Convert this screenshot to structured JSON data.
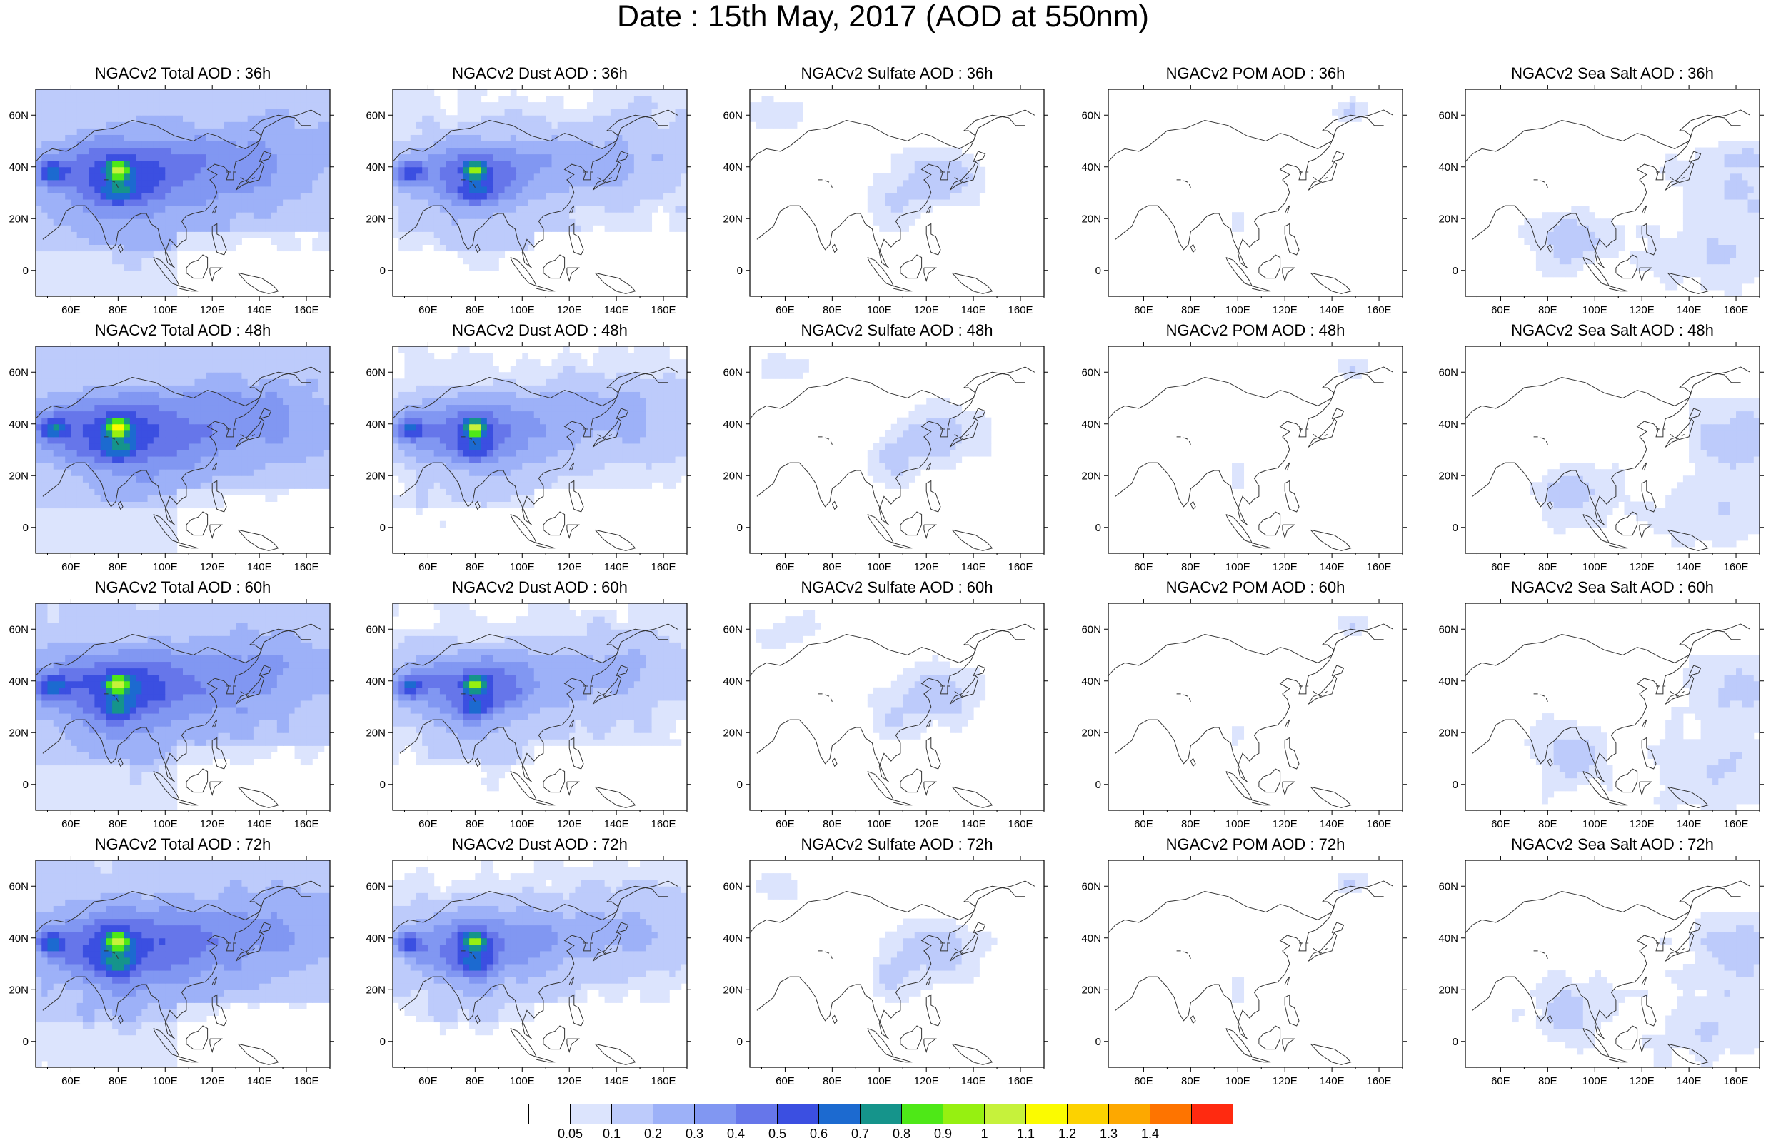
{
  "title": "Date : 15th May, 2017 (AOD at 550nm)",
  "panels": [
    {
      "title": "NGACv2 Total AOD : 36h",
      "species": "total",
      "hour": 36
    },
    {
      "title": "NGACv2 Dust AOD : 36h",
      "species": "dust",
      "hour": 36
    },
    {
      "title": "NGACv2 Sulfate AOD : 36h",
      "species": "sulfate",
      "hour": 36
    },
    {
      "title": "NGACv2 POM AOD : 36h",
      "species": "pom",
      "hour": 36
    },
    {
      "title": "NGACv2 Sea Salt AOD : 36h",
      "species": "seasalt",
      "hour": 36
    },
    {
      "title": "NGACv2 Total AOD : 48h",
      "species": "total",
      "hour": 48
    },
    {
      "title": "NGACv2 Dust AOD : 48h",
      "species": "dust",
      "hour": 48
    },
    {
      "title": "NGACv2 Sulfate AOD : 48h",
      "species": "sulfate",
      "hour": 48
    },
    {
      "title": "NGACv2 POM AOD : 48h",
      "species": "pom",
      "hour": 48
    },
    {
      "title": "NGACv2 Sea Salt AOD : 48h",
      "species": "seasalt",
      "hour": 48
    },
    {
      "title": "NGACv2 Total AOD : 60h",
      "species": "total",
      "hour": 60
    },
    {
      "title": "NGACv2 Dust AOD : 60h",
      "species": "dust",
      "hour": 60
    },
    {
      "title": "NGACv2 Sulfate AOD : 60h",
      "species": "sulfate",
      "hour": 60
    },
    {
      "title": "NGACv2 POM AOD : 60h",
      "species": "pom",
      "hour": 60
    },
    {
      "title": "NGACv2 Sea Salt AOD : 60h",
      "species": "seasalt",
      "hour": 60
    },
    {
      "title": "NGACv2 Total AOD : 72h",
      "species": "total",
      "hour": 72
    },
    {
      "title": "NGACv2 Dust AOD : 72h",
      "species": "dust",
      "hour": 72
    },
    {
      "title": "NGACv2 Sulfate AOD : 72h",
      "species": "sulfate",
      "hour": 72
    },
    {
      "title": "NGACv2 POM AOD : 72h",
      "species": "pom",
      "hour": 72
    },
    {
      "title": "NGACv2 Sea Salt  AOD : 72h",
      "species": "seasalt",
      "hour": 72
    }
  ],
  "map": {
    "lon_range": [
      45,
      170
    ],
    "lat_range": [
      -10,
      70
    ],
    "lon_ticks": [
      "60E",
      "80E",
      "100E",
      "120E",
      "140E",
      "160E"
    ],
    "lon_tick_values": [
      60,
      80,
      100,
      120,
      140,
      160
    ],
    "lat_ticks": [
      "60N",
      "40N",
      "20N",
      "0"
    ],
    "lat_tick_values": [
      60,
      40,
      20,
      0
    ]
  },
  "colorbar": {
    "labels": [
      "0.05",
      "0.1",
      "0.2",
      "0.3",
      "0.4",
      "0.5",
      "0.6",
      "0.7",
      "0.8",
      "0.9",
      "1",
      "1.1",
      "1.2",
      "1.3",
      "1.4"
    ],
    "colors": [
      "#ffffff",
      "#dce4fd",
      "#bdcbfb",
      "#9db1f8",
      "#8197f2",
      "#6676ea",
      "#3b4fe1",
      "#1c6ad0",
      "#15948b",
      "#4ee817",
      "#96f011",
      "#c6f23b",
      "#fbfb00",
      "#fcd200",
      "#fda800",
      "#fe7400",
      "#ff2a10"
    ]
  }
}
